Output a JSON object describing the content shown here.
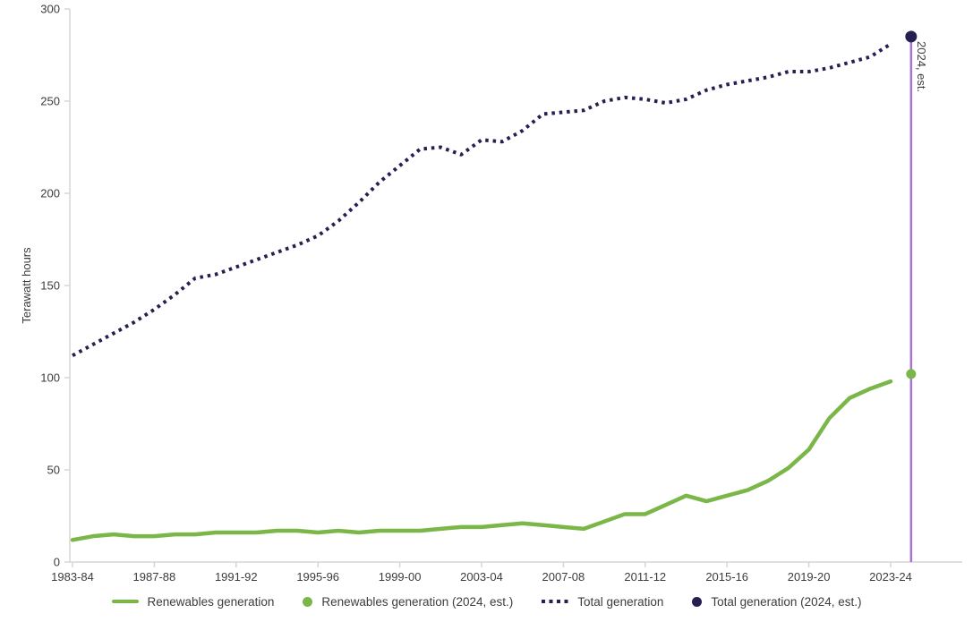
{
  "chart_data": {
    "type": "line",
    "ylabel": "Terawatt hours",
    "ylim": [
      0,
      300
    ],
    "ytick_step": 50,
    "xtick_every": 4,
    "grid": "off",
    "legend_position": "bottom-center",
    "axis_color": "#d5d5d5",
    "tick_label_color": "#3c3c3c",
    "est_line_color": "#a973d1",
    "est_label": "2024, est.",
    "est_label_color": "#201a47",
    "categories": [
      "1983-84",
      "1984-85",
      "1985-86",
      "1986-87",
      "1987-88",
      "1988-89",
      "1989-90",
      "1990-91",
      "1991-92",
      "1992-93",
      "1993-94",
      "1994-95",
      "1995-96",
      "1996-97",
      "1997-98",
      "1998-99",
      "1999-00",
      "2000-01",
      "2001-02",
      "2002-03",
      "2003-04",
      "2004-05",
      "2005-06",
      "2006-07",
      "2007-08",
      "2008-09",
      "2009-10",
      "2010-11",
      "2011-12",
      "2012-13",
      "2013-14",
      "2014-15",
      "2015-16",
      "2016-17",
      "2017-18",
      "2018-19",
      "2019-20",
      "2020-21",
      "2021-22",
      "2022-23",
      "2023-24"
    ],
    "series": [
      {
        "name": "Renewables generation",
        "style": "solid",
        "color": "#7ab648",
        "values": [
          12,
          14,
          15,
          14,
          14,
          15,
          15,
          16,
          16,
          16,
          17,
          17,
          16,
          17,
          16,
          17,
          17,
          17,
          18,
          19,
          19,
          20,
          21,
          20,
          19,
          18,
          22,
          26,
          26,
          31,
          36,
          33,
          36,
          39,
          44,
          51,
          61,
          78,
          89,
          94,
          98
        ]
      },
      {
        "name": "Total generation",
        "style": "dotted",
        "color": "#252052",
        "values": [
          112,
          118,
          124,
          130,
          137,
          145,
          154,
          156,
          160,
          164,
          168,
          172,
          177,
          185,
          195,
          206,
          215,
          224,
          225,
          221,
          229,
          228,
          234,
          243,
          244,
          245,
          250,
          252,
          251,
          249,
          251,
          256,
          259,
          261,
          263,
          266,
          266,
          268,
          271,
          274,
          281
        ]
      }
    ],
    "estimates": [
      {
        "name": "Renewables generation (2024, est.)",
        "color": "#7ab648",
        "value": 102
      },
      {
        "name": "Total generation (2024, est.)",
        "color": "#252052",
        "value": 285
      }
    ]
  },
  "legend": {
    "items": [
      {
        "label": "Renewables generation",
        "marker": "line",
        "color": "#7ab648"
      },
      {
        "label": "Renewables generation (2024, est.)",
        "marker": "dot",
        "color": "#7ab648"
      },
      {
        "label": "Total generation",
        "marker": "dotted",
        "color": "#252052"
      },
      {
        "label": "Total generation (2024, est.)",
        "marker": "dot",
        "color": "#252052"
      }
    ]
  }
}
